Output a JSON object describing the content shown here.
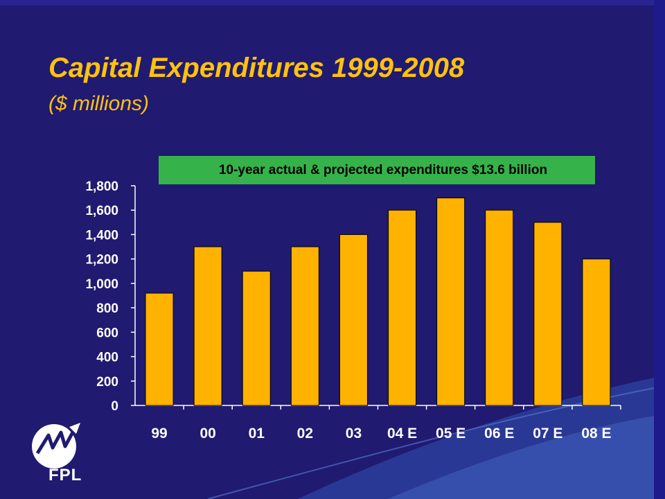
{
  "title": "Capital Expenditures 1999-2008",
  "subtitle": "($ millions)",
  "callout": "10-year actual & projected expenditures $13.6 billion",
  "logo": {
    "text": "FPL",
    "icon": "fpl-logo-icon"
  },
  "colors": {
    "background": "#201a70",
    "accent": "#ffc20e",
    "bar_fill": "#ffb300",
    "callout_bg": "#35b34a",
    "axis_text": "#ffffff"
  },
  "chart_data": {
    "type": "bar",
    "categories": [
      "99",
      "00",
      "01",
      "02",
      "03",
      "04 E",
      "05 E",
      "06 E",
      "07 E",
      "08 E"
    ],
    "values": [
      920,
      1300,
      1100,
      1300,
      1400,
      1600,
      1700,
      1600,
      1500,
      1200
    ],
    "title": "Capital Expenditures 1999-2008",
    "xlabel": "",
    "ylabel": "",
    "ylim": [
      0,
      1800
    ],
    "yticks": [
      "0",
      "200",
      "400",
      "600",
      "800",
      "1,000",
      "1,200",
      "1,400",
      "1,600",
      "1,800"
    ],
    "grid": false
  }
}
